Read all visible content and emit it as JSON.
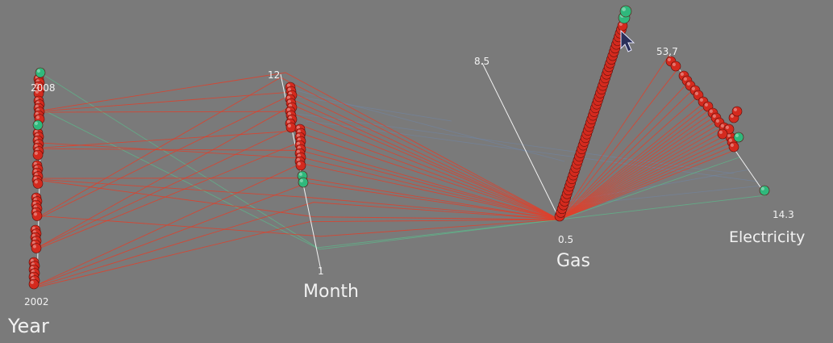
{
  "chart_data": {
    "type": "parallel-coordinates-3d",
    "title": "",
    "axes": [
      {
        "name": "Year",
        "min": 2002,
        "max": 2008,
        "min_label": "2002",
        "max_label": "2008"
      },
      {
        "name": "Month",
        "min": 1,
        "max": 12,
        "min_label": "1",
        "max_label": "12"
      },
      {
        "name": "Gas",
        "min": 0.5,
        "max": 8.5,
        "min_label": "0.5",
        "max_label": "8.5"
      },
      {
        "name": "Electricity",
        "min": 14.3,
        "max": 53.7,
        "min_label": "14.3",
        "max_label": "53.7"
      }
    ],
    "records": [
      {
        "year": 2008,
        "month": 2,
        "gas": 0.5,
        "electricity": 14.3,
        "highlight": true
      },
      {
        "year": 2007,
        "month": 2,
        "gas": 0.5,
        "electricity": 25,
        "highlight": true
      },
      {
        "year": 2007,
        "month": 12,
        "gas": 0.5,
        "electricity": 40,
        "highlight": false
      },
      {
        "year": 2007,
        "month": 11,
        "gas": 0.5,
        "electricity": 38,
        "highlight": false
      },
      {
        "year": 2007,
        "month": 10,
        "gas": 0.5,
        "electricity": 36,
        "highlight": false
      },
      {
        "year": 2006,
        "month": 9,
        "gas": 0.5,
        "electricity": 34,
        "highlight": false
      },
      {
        "year": 2006,
        "month": 8,
        "gas": 0.5,
        "electricity": 32,
        "highlight": false
      },
      {
        "year": 2006,
        "month": 7,
        "gas": 0.5,
        "electricity": 30,
        "highlight": false
      },
      {
        "year": 2005,
        "month": 6,
        "gas": 0.5,
        "electricity": 29,
        "highlight": false
      },
      {
        "year": 2005,
        "month": 5,
        "gas": 0.5,
        "electricity": 28,
        "highlight": false
      },
      {
        "year": 2005,
        "month": 4,
        "gas": 0.5,
        "electricity": 27,
        "highlight": false
      },
      {
        "year": 2004,
        "month": 3,
        "gas": 0.5,
        "electricity": 31,
        "highlight": false
      },
      {
        "year": 2004,
        "month": 12,
        "gas": 0.5,
        "electricity": 33,
        "highlight": false
      },
      {
        "year": 2004,
        "month": 11,
        "gas": 0.5,
        "electricity": 35,
        "highlight": false
      },
      {
        "year": 2003,
        "month": 10,
        "gas": 0.5,
        "electricity": 37,
        "highlight": false
      },
      {
        "year": 2003,
        "month": 9,
        "gas": 0.5,
        "electricity": 39,
        "highlight": false
      },
      {
        "year": 2003,
        "month": 8,
        "gas": 0.5,
        "electricity": 42,
        "highlight": false
      },
      {
        "year": 2002,
        "month": 7,
        "gas": 0.5,
        "electricity": 44,
        "highlight": false
      },
      {
        "year": 2002,
        "month": 6,
        "gas": 0.5,
        "electricity": 46,
        "highlight": false
      },
      {
        "year": 2002,
        "month": 5,
        "gas": 0.5,
        "electricity": 50,
        "highlight": false
      },
      {
        "year": 2002,
        "month": 4,
        "gas": 0.5,
        "electricity": 53.7,
        "highlight": false
      }
    ],
    "colors": {
      "background": "#7a7a7a",
      "line_main": "#e0402a",
      "line_highlight": "#5fb38a",
      "line_faint": "#6f86a8",
      "dot": "#d42a1e",
      "dot_highlight": "#2fb87c",
      "axis": "#f2f2f2"
    }
  },
  "cursor": {
    "icon": "mouse-pointer-icon"
  }
}
